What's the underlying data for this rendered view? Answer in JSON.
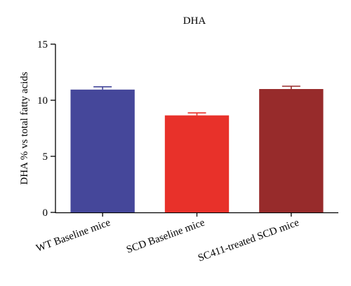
{
  "chart_data": {
    "type": "bar",
    "title": "DHA",
    "xlabel": "",
    "ylabel": "DHA % vs total fatty acids",
    "ylim": [
      0,
      15
    ],
    "yticks": [
      "0",
      "5",
      "10",
      "15"
    ],
    "categories": [
      "WT Baseline mice",
      "SCD Baseline mice",
      "SC411-treated SCD mice"
    ],
    "values": [
      10.95,
      8.65,
      11.0
    ],
    "errors": [
      0.25,
      0.22,
      0.25
    ],
    "colors": [
      "#45479a",
      "#e8312a",
      "#972b2b"
    ],
    "grid": false,
    "legend": "none"
  }
}
